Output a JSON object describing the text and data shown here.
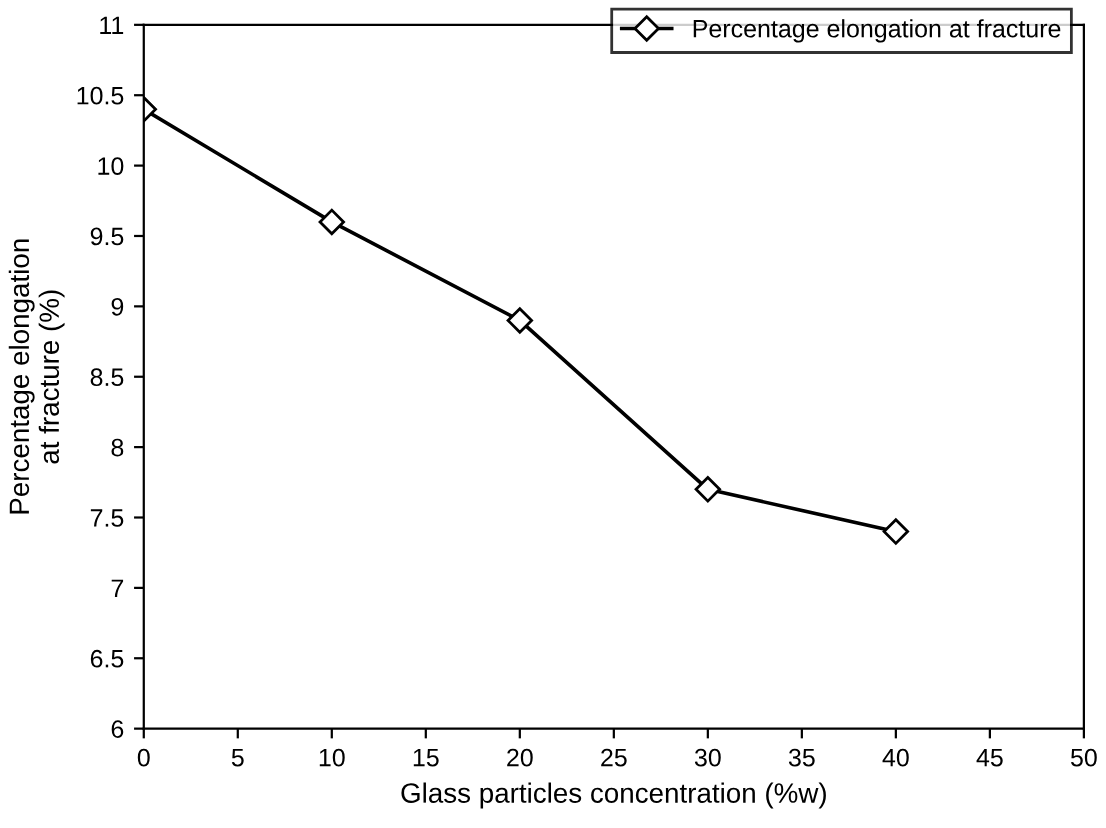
{
  "chart_data": {
    "type": "line",
    "xlabel": "Glass particles concentration (%w)",
    "ylabel": "Percentage elongation\nat fracture (%)",
    "x": [
      0,
      10,
      20,
      30,
      40
    ],
    "series": [
      {
        "name": "Percentage elongation at fracture",
        "color": "#000000",
        "values": [
          10.4,
          9.6,
          8.9,
          7.7,
          7.4
        ]
      }
    ],
    "xlim": [
      0,
      50
    ],
    "xticks": [
      0,
      5,
      10,
      15,
      20,
      25,
      30,
      35,
      40,
      45,
      50
    ],
    "ylim": [
      6,
      11
    ],
    "yticks": [
      6,
      6.5,
      7,
      7.5,
      8,
      8.5,
      9,
      9.5,
      10,
      10.5,
      11
    ],
    "grid": false,
    "legend": "top right",
    "marker": "diamond",
    "line_style": "solid"
  }
}
